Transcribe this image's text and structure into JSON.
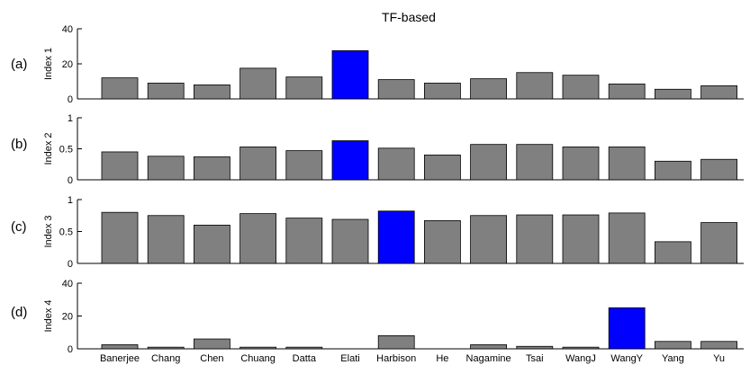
{
  "chart_data": {
    "type": "bar",
    "title": "TF-based",
    "categories": [
      "Banerjee",
      "Chang",
      "Chen",
      "Chuang",
      "Datta",
      "Elati",
      "Harbison",
      "He",
      "Nagamine",
      "Tsai",
      "WangJ",
      "WangY",
      "Yang",
      "Yu"
    ],
    "colors": {
      "default": "#808080",
      "highlight": "#0000ff"
    },
    "panels": [
      {
        "panel_label": "(a)",
        "ylabel": "Index 1",
        "ylim": [
          0,
          40
        ],
        "yticks": [
          0,
          20,
          40
        ],
        "ytick_labels": [
          "0",
          "20",
          "40"
        ],
        "values": [
          12,
          9,
          8,
          17.5,
          12.5,
          27.5,
          11,
          9,
          11.5,
          15,
          13.5,
          8.5,
          5.5,
          7.5
        ],
        "highlight_index": 5
      },
      {
        "panel_label": "(b)",
        "ylabel": "Index 2",
        "ylim": [
          0,
          1
        ],
        "yticks": [
          0,
          0.5,
          1
        ],
        "ytick_labels": [
          "0",
          "0.5",
          "1"
        ],
        "values": [
          0.45,
          0.38,
          0.37,
          0.53,
          0.47,
          0.63,
          0.51,
          0.4,
          0.57,
          0.57,
          0.53,
          0.53,
          0.3,
          0.33
        ],
        "highlight_index": 5
      },
      {
        "panel_label": "(c)",
        "ylabel": "Index 3",
        "ylim": [
          0,
          1
        ],
        "yticks": [
          0,
          0.5,
          1
        ],
        "ytick_labels": [
          "0",
          "0.5",
          "1"
        ],
        "values": [
          0.8,
          0.75,
          0.6,
          0.78,
          0.71,
          0.69,
          0.82,
          0.67,
          0.75,
          0.76,
          0.76,
          0.79,
          0.34,
          0.64
        ],
        "highlight_index": 6
      },
      {
        "panel_label": "(d)",
        "ylabel": "Index 4",
        "ylim": [
          0,
          40
        ],
        "yticks": [
          0,
          20,
          40
        ],
        "ytick_labels": [
          "0",
          "20",
          "40"
        ],
        "values": [
          2.5,
          1,
          6,
          1,
          1,
          0,
          8,
          0,
          2.5,
          1.5,
          1,
          25,
          4.5,
          4.5
        ],
        "highlight_index": 11
      }
    ]
  }
}
